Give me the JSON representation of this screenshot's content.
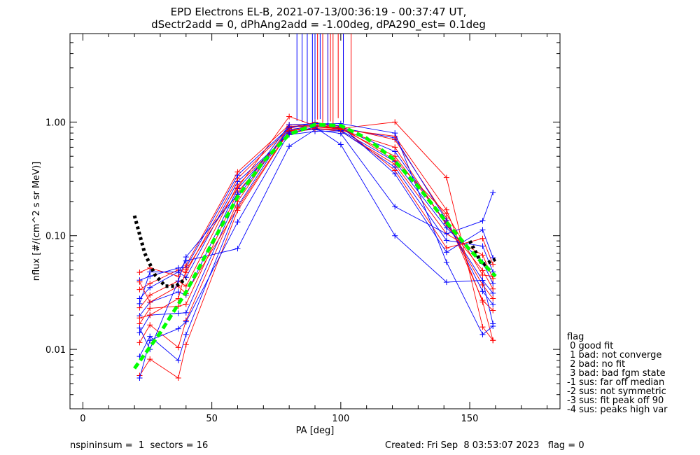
{
  "title_line1": "EPD Electrons EL-B, 2021-07-13/00:36:19 - 00:37:47 UT,",
  "title_line2": "dSectr2add = 0, dPhAng2add = -1.00deg, dPA290_est=   0.1deg",
  "footer_left": "nspininsum =  1  sectors = 16",
  "footer_right": "Created: Fri Sep  8 03:53:07 2023   flag = 0",
  "legend": {
    "title": "flag",
    "entries": [
      " 0 good fit",
      " 1 bad: not converge",
      " 2 bad: no fit",
      " 3 bad: bad fgm state",
      "-1 sus: far off median",
      "-2 sus: not symmetric",
      "-3 sus: fit peak off 90",
      "-4 sus: peaks high var"
    ]
  },
  "colors": {
    "red": "#ff0000",
    "blue": "#0000ff",
    "green": "#00ff00",
    "black": "#000000"
  },
  "chart_data": {
    "type": "line",
    "xlabel": "PA [deg]",
    "ylabel": "nflux [#/(cm^2 s sr MeV)]",
    "xlim": [
      -5,
      185
    ],
    "ylim": [
      0.003,
      6
    ],
    "yscale": "log",
    "xticks": [
      0,
      50,
      100,
      150
    ],
    "xtick_labels": [
      "0",
      "50",
      "100",
      "150"
    ],
    "yticks": [
      0.01,
      0.1,
      1.0
    ],
    "ytick_labels": [
      "0.01",
      "0.10",
      "1.00"
    ],
    "pa_sectors": [
      22,
      26,
      37,
      40,
      60,
      80,
      90,
      100,
      121,
      141,
      155,
      159
    ],
    "base_profile": [
      0.014,
      0.02,
      0.04,
      0.05,
      0.22,
      0.86,
      0.92,
      0.88,
      0.5,
      0.13,
      0.045,
      0.04
    ],
    "series": [
      {
        "color": "red",
        "scale": [
          0.42,
          0.41,
          0.14,
          0.22,
          0.76,
          0.97,
          1.05,
          1.02,
          1.4,
          1.1,
          0.6,
          0.55
        ],
        "peak_line_x": 91
      },
      {
        "color": "blue",
        "scale": [
          0.62,
          0.65,
          0.2,
          0.27,
          0.83,
          1.05,
          1.02,
          1.01,
          1.45,
          1.05,
          0.72,
          0.62
        ],
        "peak_line_x": 83
      },
      {
        "color": "red",
        "scale": [
          0.82,
          0.82,
          0.26,
          0.36,
          0.91,
          1.07,
          0.98,
          0.99,
          1.0,
          1.0,
          0.82,
          0.7
        ],
        "peak_line_x": 93
      },
      {
        "color": "blue",
        "scale": [
          1.0,
          1.0,
          0.52,
          0.42,
          1.0,
          1.0,
          1.0,
          1.0,
          1.1,
          0.98,
          0.9,
          0.78
        ],
        "peak_line_x": 85
      },
      {
        "color": "red",
        "scale": [
          1.2,
          1.15,
          0.6,
          0.5,
          1.1,
          0.96,
          1.02,
          0.97,
          1.2,
          0.95,
          1.1,
          0.85
        ],
        "peak_line_x": 95
      },
      {
        "color": "blue",
        "scale": [
          1.41,
          1.3,
          0.8,
          0.6,
          1.18,
          0.95,
          0.94,
          0.96,
          0.9,
          0.9,
          1.3,
          0.95
        ],
        "peak_line_x": 87
      },
      {
        "color": "red",
        "scale": [
          1.66,
          1.5,
          1.0,
          0.72,
          1.27,
          0.92,
          0.96,
          0.94,
          0.85,
          0.8,
          1.5,
          1.05
        ],
        "peak_line_x": 97
      },
      {
        "color": "blue",
        "scale": [
          2.0,
          1.75,
          1.2,
          0.86,
          1.36,
          0.9,
          0.9,
          0.95,
          0.8,
          0.7,
          1.8,
          1.2
        ],
        "peak_line_x": 89
      },
      {
        "color": "red",
        "scale": [
          2.4,
          1.9,
          1.25,
          0.95,
          1.45,
          1.02,
          1.08,
          1.04,
          0.75,
          0.6,
          2.1,
          1.4
        ],
        "peak_line_x": 99
      },
      {
        "color": "blue",
        "scale": [
          2.9,
          2.2,
          1.3,
          1.05,
          1.55,
          1.04,
          1.06,
          1.05,
          0.7,
          0.55,
          2.5,
          1.6
        ],
        "peak_line_x": 92
      },
      {
        "color": "red",
        "scale": [
          3.4,
          2.6,
          1.1,
          1.1,
          1.65,
          1.1,
          1.0,
          1.03,
          0.92,
          1.2,
          1.0,
          1.1
        ],
        "peak_line_x": 101
      },
      {
        "color": "blue",
        "scale": [
          1.8,
          2.4,
          1.2,
          1.2,
          0.35,
          0.71,
          0.93,
          0.9,
          0.36,
          0.8,
          3.0,
          6.0
        ],
        "peak_line_x": 95
      },
      {
        "color": "red",
        "scale": [
          2.8,
          1.3,
          0.9,
          0.62,
          0.8,
          0.98,
          0.95,
          0.98,
          1.5,
          1.3,
          0.58,
          0.3
        ],
        "peak_line_x": 104
      },
      {
        "color": "blue",
        "scale": [
          0.4,
          0.6,
          0.38,
          0.35,
          0.6,
          0.93,
          0.98,
          0.72,
          0.2,
          0.3,
          0.9,
          0.42
        ],
        "peak_line_x": 101
      },
      {
        "color": "red",
        "scale": [
          1.35,
          1.0,
          0.7,
          1.0,
          1.2,
          1.3,
          1.01,
          1.0,
          2.0,
          2.5,
          0.35,
          0.3
        ],
        "peak_line_x": 96
      },
      {
        "color": "blue",
        "scale": [
          1.1,
          0.5,
          1.0,
          1.3,
          1.05,
          1.1,
          1.05,
          1.1,
          1.6,
          0.45,
          0.3,
          0.4
        ],
        "peak_line_x": 90
      }
    ],
    "median_fit": {
      "color": "green",
      "x": [
        20,
        30,
        40,
        50,
        60,
        70,
        80,
        90,
        100,
        110,
        120,
        130,
        140,
        150,
        160
      ],
      "y": [
        0.0068,
        0.014,
        0.032,
        0.085,
        0.22,
        0.45,
        0.78,
        0.95,
        0.93,
        0.72,
        0.48,
        0.27,
        0.14,
        0.075,
        0.044
      ]
    },
    "black_fit": {
      "color": "black",
      "x": [
        20,
        24,
        28,
        32,
        36,
        40
      ],
      "y": [
        0.15,
        0.07,
        0.045,
        0.036,
        0.036,
        0.042
      ]
    },
    "black_fit_right": {
      "color": "black",
      "x": [
        150,
        155,
        160
      ],
      "y": [
        0.09,
        0.055,
        0.062
      ]
    }
  }
}
